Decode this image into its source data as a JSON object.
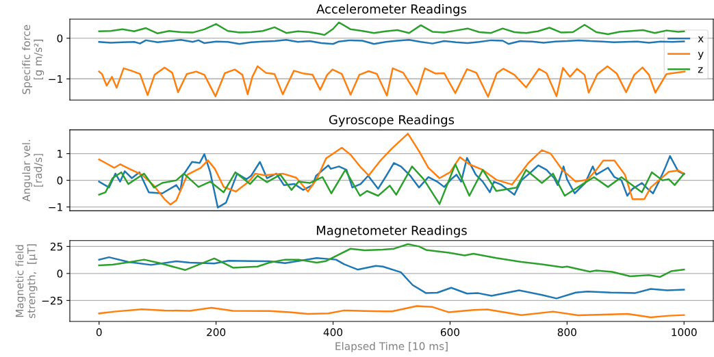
{
  "chart_data": [
    {
      "type": "line",
      "title": "Accelerometer Readings",
      "ylabel": "Specific force\n[g m/s²]",
      "xlim": [
        -50,
        1050
      ],
      "ylim": [
        -1.52,
        0.47
      ],
      "yticks": [
        {
          "value": 0,
          "label": "0"
        },
        {
          "value": -1,
          "label": "−1"
        }
      ],
      "grid": "y",
      "tick_labels": "y",
      "legend": "upper right",
      "series": [
        {
          "name": "x",
          "color": "#1f77b4",
          "x": [
            0,
            20,
            40,
            60,
            70,
            80,
            100,
            120,
            140,
            160,
            170,
            180,
            200,
            220,
            240,
            260,
            280,
            300,
            320,
            340,
            360,
            380,
            400,
            410,
            430,
            450,
            470,
            490,
            510,
            530,
            550,
            570,
            590,
            610,
            630,
            650,
            670,
            690,
            700,
            720,
            740,
            760,
            780,
            800,
            820,
            840,
            860,
            880,
            900,
            920,
            940,
            960,
            980,
            1000
          ],
          "values": [
            -0.09,
            -0.11,
            -0.1,
            -0.09,
            -0.13,
            -0.05,
            -0.1,
            -0.07,
            -0.04,
            -0.09,
            -0.05,
            -0.12,
            -0.08,
            -0.09,
            -0.14,
            -0.1,
            -0.08,
            -0.07,
            -0.04,
            -0.09,
            -0.07,
            -0.12,
            -0.14,
            -0.08,
            -0.05,
            -0.06,
            -0.14,
            -0.09,
            -0.06,
            -0.04,
            -0.09,
            -0.13,
            -0.07,
            -0.1,
            -0.12,
            -0.09,
            -0.05,
            -0.06,
            -0.14,
            -0.07,
            -0.08,
            -0.11,
            -0.08,
            -0.07,
            -0.05,
            -0.07,
            -0.08,
            -0.1,
            -0.09,
            -0.08,
            -0.11,
            -0.08,
            -0.09,
            -0.08
          ]
        },
        {
          "name": "y",
          "color": "#ff7f0e",
          "x": [
            0,
            5,
            13,
            22,
            30,
            42,
            55,
            70,
            83,
            95,
            112,
            125,
            135,
            150,
            166,
            180,
            199,
            215,
            232,
            245,
            254,
            262,
            271,
            285,
            300,
            314,
            333,
            350,
            365,
            378,
            390,
            399,
            415,
            430,
            445,
            461,
            475,
            492,
            502,
            520,
            543,
            557,
            575,
            590,
            609,
            629,
            645,
            665,
            680,
            691,
            710,
            730,
            752,
            765,
            782,
            793,
            805,
            817,
            830,
            837,
            852,
            869,
            885,
            901,
            915,
            929,
            940,
            951,
            970,
            985,
            1001
          ],
          "values": [
            -0.82,
            -0.88,
            -1.17,
            -0.95,
            -1.22,
            -0.74,
            -0.8,
            -0.88,
            -1.4,
            -0.9,
            -0.72,
            -0.85,
            -1.33,
            -0.88,
            -0.82,
            -0.9,
            -1.43,
            -0.86,
            -0.77,
            -0.9,
            -1.38,
            -0.95,
            -0.69,
            -0.85,
            -0.88,
            -1.38,
            -0.8,
            -0.87,
            -0.9,
            -1.27,
            -0.9,
            -0.77,
            -0.88,
            -1.39,
            -0.9,
            -0.81,
            -0.88,
            -1.41,
            -0.74,
            -0.85,
            -1.38,
            -0.74,
            -0.87,
            -0.86,
            -1.35,
            -0.76,
            -0.85,
            -1.44,
            -0.86,
            -0.75,
            -0.9,
            -1.21,
            -0.75,
            -0.86,
            -1.43,
            -0.73,
            -0.95,
            -0.75,
            -0.9,
            -1.34,
            -0.88,
            -0.69,
            -0.87,
            -1.33,
            -0.9,
            -0.72,
            -0.9,
            -1.34,
            -0.88,
            -0.85,
            -0.82
          ]
        },
        {
          "name": "z",
          "color": "#2ca02c",
          "x": [
            0,
            20,
            40,
            60,
            80,
            100,
            120,
            140,
            160,
            180,
            200,
            220,
            240,
            260,
            280,
            300,
            320,
            340,
            360,
            380,
            385,
            400,
            410,
            430,
            450,
            470,
            490,
            510,
            530,
            550,
            570,
            590,
            610,
            630,
            650,
            670,
            690,
            710,
            730,
            750,
            770,
            790,
            810,
            830,
            850,
            870,
            890,
            910,
            930,
            950,
            970,
            990,
            1000
          ],
          "values": [
            0.17,
            0.18,
            0.22,
            0.17,
            0.25,
            0.12,
            0.18,
            0.15,
            0.14,
            0.22,
            0.35,
            0.18,
            0.14,
            0.15,
            0.18,
            0.27,
            0.13,
            0.17,
            0.15,
            0.1,
            0.08,
            0.23,
            0.39,
            0.22,
            0.18,
            0.13,
            0.17,
            0.2,
            0.13,
            0.32,
            0.16,
            0.14,
            0.19,
            0.24,
            0.15,
            0.13,
            0.24,
            0.15,
            0.13,
            0.17,
            0.26,
            0.14,
            0.15,
            0.33,
            0.15,
            0.1,
            0.16,
            0.18,
            0.2,
            0.13,
            0.19,
            0.16,
            0.17
          ]
        }
      ]
    },
    {
      "type": "line",
      "title": "Gyroscope Readings",
      "ylabel": "Angular vel.\n[rad/s]",
      "xlim": [
        -50,
        1050
      ],
      "ylim": [
        -1.14,
        1.89
      ],
      "yticks": [
        {
          "value": -1,
          "label": "−1"
        },
        {
          "value": 0,
          "label": "0"
        },
        {
          "value": 1,
          "label": "1"
        }
      ],
      "grid": "y",
      "tick_labels": "y",
      "series": [
        {
          "color": "#1f77b4",
          "x": [
            0,
            17,
            28,
            36,
            44,
            56,
            69,
            85,
            108,
            132,
            139,
            143,
            159,
            172,
            180,
            190,
            203,
            217,
            236,
            252,
            260,
            275,
            287,
            303,
            316,
            334,
            349,
            365,
            371,
            392,
            396,
            410,
            423,
            433,
            447,
            460,
            477,
            491,
            504,
            516,
            532,
            547,
            563,
            578,
            590,
            602,
            611,
            619,
            629,
            644,
            656,
            668,
            675,
            687,
            710,
            722,
            738,
            751,
            765,
            778,
            784,
            794,
            800,
            813,
            831,
            844,
            850,
            870,
            881,
            893,
            903,
            912,
            928,
            938,
            947,
            957,
            967,
            976,
            990,
            1000
          ],
          "values": [
            -0.05,
            -0.27,
            0.25,
            -0.05,
            0.34,
            0.08,
            0.3,
            -0.45,
            -0.49,
            -0.18,
            -0.4,
            0.17,
            0.69,
            0.65,
            0.98,
            0.3,
            -1.02,
            -0.84,
            0.25,
            0.04,
            0.17,
            0.69,
            0.08,
            0.25,
            -0.18,
            -0.14,
            -0.36,
            -0.18,
            0.17,
            0.56,
            0.43,
            0.52,
            0.39,
            -0.27,
            -0.14,
            0.17,
            -0.32,
            0.17,
            0.65,
            0.52,
            0.17,
            -0.27,
            0.12,
            -0.05,
            -0.25,
            0.04,
            0.21,
            -0.05,
            0.84,
            0.21,
            -0.05,
            -0.45,
            -0.05,
            -0.16,
            -0.54,
            0,
            0.3,
            0.56,
            0.39,
            0.08,
            -0.18,
            0.52,
            0.04,
            -0.49,
            -0.1,
            0.52,
            0.21,
            0.47,
            0.12,
            0,
            -0.58,
            -0.32,
            -0.1,
            -0.32,
            -0.49,
            -0.05,
            0.43,
            0.91,
            0.34,
            0.23
          ]
        },
        {
          "color": "#ff7f0e",
          "x": [
            0,
            11,
            26,
            36,
            50,
            73,
            93,
            112,
            122,
            132,
            151,
            174,
            186,
            198,
            213,
            234,
            256,
            267,
            283,
            314,
            337,
            357,
            372,
            388,
            415,
            430,
            446,
            461,
            481,
            500,
            528,
            547,
            563,
            582,
            600,
            617,
            633,
            656,
            679,
            706,
            734,
            757,
            772,
            792,
            815,
            835,
            850,
            862,
            881,
            899,
            912,
            932,
            943,
            974,
            990,
            1000
          ],
          "values": [
            0.78,
            0.65,
            0.47,
            0.6,
            0.45,
            0.21,
            -0.18,
            -0.71,
            -0.91,
            -0.75,
            0.21,
            0.47,
            0.75,
            0.43,
            -0.25,
            -0.42,
            -0.05,
            0.25,
            0.19,
            0.25,
            0.1,
            -0.42,
            0.04,
            0.82,
            1.22,
            0.96,
            0.52,
            0.18,
            0.74,
            1.18,
            1.75,
            1.09,
            0.47,
            0.08,
            0.3,
            0.87,
            0.6,
            0.39,
            0.02,
            -0.16,
            0.65,
            1.13,
            1.0,
            0.39,
            -0.05,
            0.02,
            0.39,
            0.74,
            0.74,
            0.21,
            -0.71,
            -0.71,
            -0.27,
            0.32,
            0.37,
            0.25
          ]
        },
        {
          "color": "#2ca02c",
          "x": [
            0,
            11,
            23,
            38,
            50,
            65,
            77,
            94,
            108,
            132,
            145,
            170,
            190,
            213,
            233,
            258,
            271,
            287,
            310,
            329,
            341,
            360,
            382,
            397,
            421,
            446,
            458,
            477,
            497,
            508,
            535,
            555,
            582,
            609,
            633,
            656,
            679,
            714,
            730,
            757,
            776,
            796,
            827,
            846,
            870,
            893,
            928,
            945,
            963,
            974,
            984,
            1000
          ],
          "values": [
            -0.54,
            -0.45,
            0.08,
            0.3,
            -0.14,
            0.08,
            0.25,
            -0.27,
            -0.1,
            0,
            0.25,
            -0.25,
            -0.05,
            -0.45,
            0.3,
            -0.14,
            0.17,
            -0.07,
            0.21,
            -0.36,
            -0.05,
            -0.1,
            0.12,
            -0.49,
            0.39,
            -0.58,
            -0.4,
            -0.58,
            -0.2,
            -0.54,
            0.52,
            0.04,
            -0.89,
            0.6,
            -0.58,
            0.39,
            -0.4,
            -0.27,
            0.39,
            -0.1,
            0.25,
            -0.58,
            -0.14,
            0.12,
            -0.25,
            0.12,
            -0.45,
            0.3,
            0,
            0.04,
            -0.18,
            0.25
          ]
        }
      ]
    },
    {
      "type": "line",
      "title": "Magnetometer Readings",
      "ylabel": "Magnetic field\nstrength,  [μT]",
      "xlabel": "Elapsed Time [10 ms]",
      "xlim": [
        -50,
        1050
      ],
      "ylim": [
        -44.4,
        30.4
      ],
      "xticks": [
        0,
        200,
        400,
        600,
        800,
        1000
      ],
      "yticks": [
        {
          "value": -25,
          "label": "−25"
        },
        {
          "value": 0,
          "label": "0"
        },
        {
          "value": 25,
          "label": "25"
        }
      ],
      "grid": "y",
      "series": [
        {
          "color": "#1f77b4",
          "x": [
            0,
            17,
            50,
            89,
            132,
            155,
            197,
            221,
            260,
            291,
            318,
            372,
            405,
            419,
            442,
            473,
            485,
            516,
            536,
            559,
            578,
            602,
            629,
            648,
            671,
            718,
            757,
            782,
            815,
            835,
            874,
            916,
            943,
            971,
            1000
          ],
          "values": [
            12.8,
            15,
            10.7,
            7.9,
            11.3,
            10,
            9.2,
            11.8,
            11.5,
            11.3,
            9.6,
            14.3,
            12.8,
            8.5,
            3.6,
            7,
            6.4,
            1.1,
            -10.7,
            -18.2,
            -17.8,
            -13.2,
            -18.6,
            -18.2,
            -20.7,
            -15.6,
            -19.9,
            -23.1,
            -17.7,
            -16.7,
            -17.7,
            -18.2,
            -14.3,
            -15.6,
            -15
          ]
        },
        {
          "color": "#ff7f0e",
          "x": [
            0,
            26,
            73,
            112,
            155,
            192,
            229,
            291,
            326,
            357,
            392,
            419,
            454,
            485,
            501,
            543,
            570,
            598,
            640,
            664,
            722,
            776,
            819,
            904,
            943,
            974,
            1000
          ],
          "values": [
            -37,
            -35.3,
            -33.1,
            -34.2,
            -34.6,
            -31.8,
            -34.6,
            -34.8,
            -35.9,
            -37.4,
            -37,
            -34.2,
            -34.8,
            -35.1,
            -35.1,
            -30.1,
            -31,
            -35.9,
            -33.8,
            -33.3,
            -38.5,
            -35.3,
            -38.7,
            -37.4,
            -40.6,
            -39.1,
            -38.5
          ]
        },
        {
          "color": "#2ca02c",
          "x": [
            0,
            23,
            54,
            77,
            104,
            147,
            197,
            229,
            271,
            291,
            318,
            341,
            372,
            388,
            430,
            454,
            485,
            504,
            528,
            547,
            559,
            598,
            625,
            640,
            679,
            722,
            757,
            792,
            800,
            839,
            850,
            877,
            908,
            940,
            959,
            978,
            1000
          ],
          "values": [
            7.5,
            8.1,
            10.7,
            12.8,
            9.6,
            3.2,
            13.9,
            5.3,
            6.4,
            10,
            12.8,
            12.8,
            10,
            11.5,
            22.9,
            21.4,
            22,
            22.9,
            27.1,
            25,
            21.8,
            19.2,
            16.7,
            18.2,
            14.3,
            10.7,
            8.5,
            5.8,
            6.4,
            1.7,
            2.8,
            1.5,
            -2.6,
            -1.5,
            -3.2,
            2.1,
            3.6
          ]
        }
      ]
    }
  ]
}
